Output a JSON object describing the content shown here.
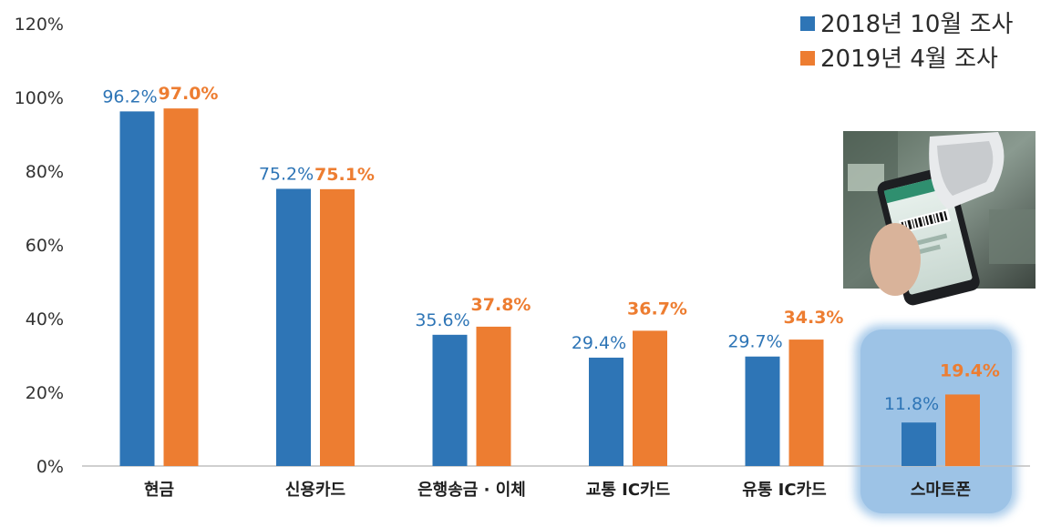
{
  "chart_data": {
    "type": "bar",
    "categories": [
      "현금",
      "신용카드",
      "은행송금 · 이체",
      "교통 IC카드",
      "유통 IC카드",
      "스마트폰"
    ],
    "series": [
      {
        "name": "2018년 10월 조사",
        "values": [
          96.2,
          75.2,
          35.6,
          29.4,
          29.7,
          11.8
        ],
        "labels": [
          "96.2%",
          "75.2%",
          "35.6%",
          "29.4%",
          "29.7%",
          "11.8%"
        ],
        "color": "#2e75b6"
      },
      {
        "name": "2019년 4월 조사",
        "values": [
          97.0,
          75.1,
          37.8,
          36.7,
          34.3,
          19.4
        ],
        "labels": [
          "97.0%",
          "75.1%",
          "37.8%",
          "36.7%",
          "34.3%",
          "19.4%"
        ],
        "color": "#ed7d31"
      }
    ],
    "yticks": [
      "0%",
      "20%",
      "40%",
      "60%",
      "80%",
      "100%",
      "120%"
    ],
    "ylim": [
      0,
      120
    ],
    "legend_position": "top-right",
    "highlight_category": "스마트폰",
    "highlight_color": "#9dc3e6",
    "photo_subject": "smartphone-barcode-payment-photo"
  }
}
